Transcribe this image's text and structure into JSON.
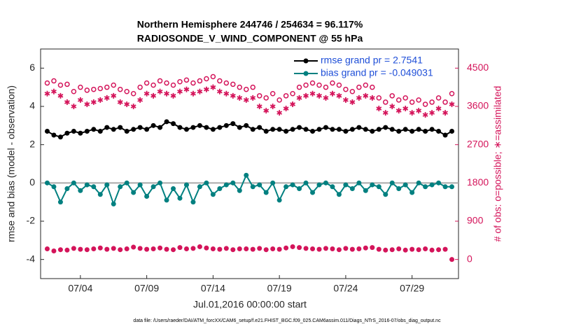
{
  "chart_data": {
    "type": "line",
    "title": "Northern Hemisphere 244746 / 254634 = 96.117%",
    "subtitle": "RADIOSONDE_V_WIND_COMPONENT @ 55 hPa",
    "x_label": "Jul.01,2016 00:00:00 start",
    "y_label": "rmse and bias (model - observation)",
    "y2_label": "# of obs: o=possible; ∗=assimilated",
    "footnote": "data file: /Users/raeder/DAI/ATM_forcXX/CAM6_setup/f.e21.FHIST_BGC.f09_025.CAM6assim.011/Diags_NTrS_2016-07/obs_diag_output.nc",
    "xlim": [
      1,
      32.5
    ],
    "xticks": [
      {
        "value": 4,
        "label": "07/04"
      },
      {
        "value": 9,
        "label": "07/09"
      },
      {
        "value": 14,
        "label": "07/14"
      },
      {
        "value": 19,
        "label": "07/19"
      },
      {
        "value": 24,
        "label": "07/24"
      },
      {
        "value": 29,
        "label": "07/29"
      }
    ],
    "ylim": [
      -5,
      7
    ],
    "yticks": [
      -4,
      -2,
      0,
      2,
      4,
      6
    ],
    "y2lim": [
      -450,
      4950
    ],
    "y2ticks": [
      0,
      900,
      1800,
      2700,
      3600,
      4500
    ],
    "zero_line": true,
    "y2_color": "#d4145a",
    "legend_text_color": "#1f4fd8",
    "legend_position": "upper right",
    "x": [
      1.5,
      2,
      2.5,
      3,
      3.5,
      4,
      4.5,
      5,
      5.5,
      6,
      6.5,
      7,
      7.5,
      8,
      8.5,
      9,
      9.5,
      10,
      10.5,
      11,
      11.5,
      12,
      12.5,
      13,
      13.5,
      14,
      14.5,
      15,
      15.5,
      16,
      16.5,
      17,
      17.5,
      18,
      18.5,
      19,
      19.5,
      20,
      20.5,
      21,
      21.5,
      22,
      22.5,
      23,
      23.5,
      24,
      24.5,
      25,
      25.5,
      26,
      26.5,
      27,
      27.5,
      28,
      28.5,
      29,
      29.5,
      30,
      30.5,
      31,
      31.5,
      32
    ],
    "series": [
      {
        "name": "rmse grand pr = 2.7541",
        "color": "#000000",
        "marker": "circle-line",
        "axis": "y",
        "values": [
          2.7,
          2.5,
          2.4,
          2.6,
          2.7,
          2.6,
          2.7,
          2.8,
          2.7,
          2.9,
          2.8,
          2.9,
          2.7,
          2.8,
          2.9,
          2.8,
          3.0,
          2.9,
          3.2,
          3.1,
          2.9,
          2.8,
          2.9,
          3.0,
          2.9,
          2.8,
          2.9,
          3.0,
          3.1,
          2.9,
          3.0,
          2.8,
          2.9,
          2.7,
          2.8,
          2.8,
          2.7,
          2.8,
          2.9,
          2.8,
          2.7,
          2.8,
          2.9,
          2.8,
          2.8,
          2.7,
          2.8,
          2.9,
          2.8,
          2.7,
          2.8,
          2.9,
          2.8,
          2.7,
          2.8,
          2.7,
          2.8,
          2.7,
          2.8,
          2.7,
          2.5,
          2.7
        ]
      },
      {
        "name": "bias grand pr = -0.049031",
        "color": "#008080",
        "marker": "circle-line",
        "axis": "y",
        "values": [
          0.0,
          -0.2,
          -1.0,
          -0.3,
          0.0,
          -0.4,
          -0.1,
          -0.2,
          -0.6,
          -0.1,
          -1.1,
          -0.2,
          0.0,
          -0.5,
          -0.1,
          -0.7,
          -0.2,
          0.0,
          -0.9,
          -0.3,
          -0.8,
          -0.1,
          -1.0,
          -0.2,
          0.0,
          -0.6,
          -0.3,
          -0.1,
          0.0,
          -0.4,
          0.4,
          -0.2,
          -0.1,
          -0.5,
          0.0,
          -0.9,
          -0.2,
          -0.1,
          -0.3,
          0.0,
          -0.5,
          -0.1,
          0.0,
          -0.2,
          -0.6,
          -0.1,
          -0.3,
          0.0,
          -0.4,
          -0.1,
          -0.2,
          -0.6,
          0.0,
          -0.3,
          -0.1,
          -0.5,
          0.0,
          -0.2,
          -0.1,
          0.0,
          -0.2,
          -0.2
        ]
      },
      {
        "color": "#d4145a",
        "marker": "open-circle",
        "axis": "y2",
        "values": [
          4150,
          4200,
          4100,
          4120,
          3950,
          4050,
          3980,
          4000,
          4020,
          4050,
          4100,
          4000,
          3950,
          3900,
          4050,
          4150,
          4100,
          4200,
          4150,
          4100,
          4180,
          4220,
          4150,
          4200,
          4250,
          4300,
          4200,
          4150,
          4120,
          4050,
          4000,
          4050,
          3850,
          3800,
          3900,
          3750,
          3850,
          3900,
          4050,
          4100,
          4150,
          4100,
          4050,
          4150,
          4100,
          4000,
          3950,
          4050,
          4100,
          4050,
          3800,
          3700,
          3850,
          3750,
          3800,
          3700,
          3750,
          3650,
          3700,
          3800,
          3700,
          3900
        ]
      },
      {
        "color": "#d4145a",
        "marker": "asterisk",
        "axis": "y2",
        "values": [
          3900,
          3950,
          3850,
          3700,
          3600,
          3750,
          3650,
          3700,
          3750,
          3800,
          3850,
          3700,
          3650,
          3600,
          3750,
          3900,
          3850,
          3950,
          3900,
          3850,
          3950,
          4000,
          3900,
          3950,
          4000,
          4050,
          3950,
          3900,
          3850,
          3800,
          3750,
          3800,
          3600,
          3500,
          3600,
          3450,
          3550,
          3650,
          3800,
          3850,
          3900,
          3850,
          3800,
          3900,
          3850,
          3750,
          3700,
          3800,
          3850,
          3800,
          3550,
          3450,
          3600,
          3500,
          3550,
          3450,
          3500,
          3400,
          3450,
          3550,
          3450,
          3650
        ]
      },
      {
        "color": "#d4145a",
        "marker": "dot",
        "axis": "y2",
        "values": [
          250,
          200,
          230,
          220,
          260,
          240,
          230,
          250,
          270,
          240,
          260,
          230,
          250,
          290,
          260,
          240,
          250,
          270,
          240,
          230,
          280,
          250,
          260,
          300,
          270,
          250,
          240,
          260,
          230,
          250,
          250,
          240,
          260,
          230,
          250,
          240,
          270,
          300,
          280,
          260,
          250,
          240,
          260,
          250,
          230,
          260,
          240,
          250,
          270,
          280,
          240,
          220,
          230,
          250,
          220,
          240,
          230,
          250,
          220,
          230,
          240,
          0
        ]
      }
    ]
  }
}
